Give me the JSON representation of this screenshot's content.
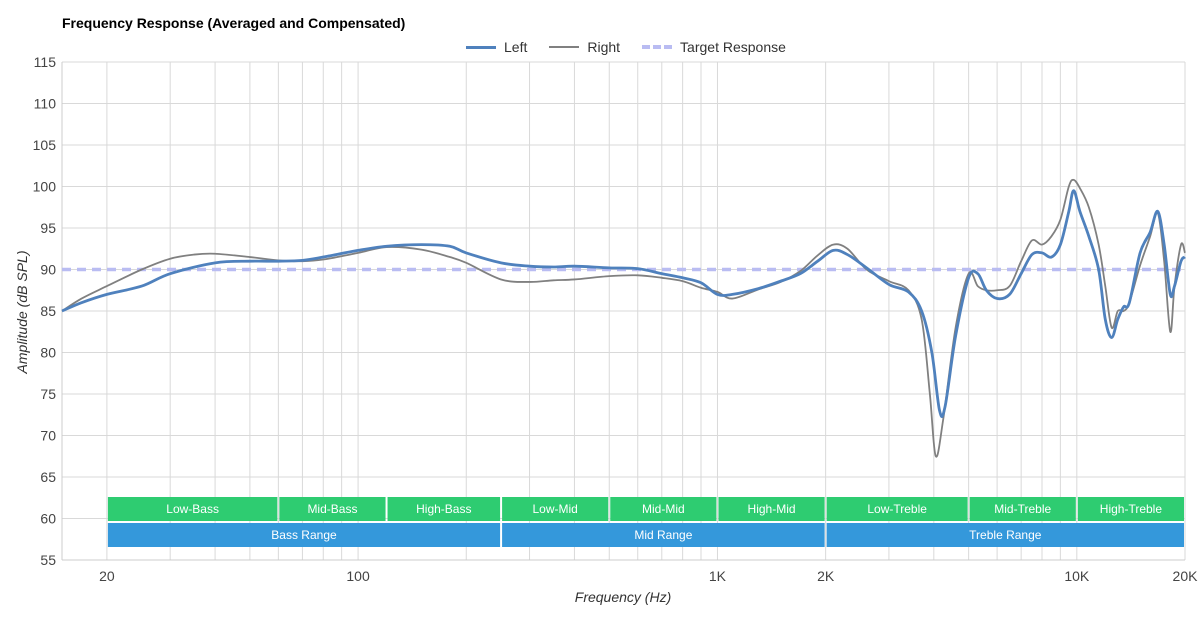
{
  "chart_data": {
    "type": "line",
    "title": "Frequency Response (Averaged and Compensated)",
    "xlabel": "Frequency (Hz)",
    "ylabel": "Amplitude (dB SPL)",
    "xscale": "log",
    "xlim": [
      15,
      20000
    ],
    "ylim": [
      55,
      115
    ],
    "yticks": [
      55,
      60,
      65,
      70,
      75,
      80,
      85,
      90,
      95,
      100,
      105,
      110,
      115
    ],
    "xtick_labels": [
      {
        "value": 20,
        "label": "20"
      },
      {
        "value": 100,
        "label": "100"
      },
      {
        "value": 1000,
        "label": "1K"
      },
      {
        "value": 2000,
        "label": "2K"
      },
      {
        "value": 10000,
        "label": "10K"
      },
      {
        "value": 20000,
        "label": "20K"
      }
    ],
    "grid": true,
    "legend_position": "top-center",
    "series": [
      {
        "name": "Left",
        "color": "#4f81bd",
        "points": [
          [
            15,
            85
          ],
          [
            17,
            86
          ],
          [
            20,
            87
          ],
          [
            25,
            88
          ],
          [
            30,
            89.5
          ],
          [
            40,
            90.8
          ],
          [
            50,
            91
          ],
          [
            60,
            91
          ],
          [
            70,
            91.1
          ],
          [
            80,
            91.5
          ],
          [
            100,
            92.3
          ],
          [
            120,
            92.8
          ],
          [
            150,
            93
          ],
          [
            180,
            92.8
          ],
          [
            200,
            92
          ],
          [
            250,
            90.8
          ],
          [
            300,
            90.4
          ],
          [
            350,
            90.3
          ],
          [
            400,
            90.4
          ],
          [
            500,
            90.2
          ],
          [
            600,
            90.1
          ],
          [
            700,
            89.5
          ],
          [
            800,
            89
          ],
          [
            900,
            88.4
          ],
          [
            1000,
            87
          ],
          [
            1100,
            87
          ],
          [
            1300,
            87.7
          ],
          [
            1500,
            88.6
          ],
          [
            1700,
            89.5
          ],
          [
            1900,
            91
          ],
          [
            2100,
            92.3
          ],
          [
            2300,
            91.8
          ],
          [
            2600,
            90.2
          ],
          [
            3000,
            88.2
          ],
          [
            3400,
            87.3
          ],
          [
            3700,
            85
          ],
          [
            3950,
            80
          ],
          [
            4150,
            73
          ],
          [
            4300,
            73.5
          ],
          [
            4600,
            82
          ],
          [
            5000,
            89
          ],
          [
            5300,
            89.5
          ],
          [
            5600,
            87.5
          ],
          [
            6000,
            86.5
          ],
          [
            6500,
            87
          ],
          [
            7000,
            89.5
          ],
          [
            7500,
            91.8
          ],
          [
            8000,
            92
          ],
          [
            8500,
            91.5
          ],
          [
            9000,
            93
          ],
          [
            9500,
            97
          ],
          [
            9800,
            99.5
          ],
          [
            10200,
            97
          ],
          [
            10800,
            94
          ],
          [
            11500,
            90
          ],
          [
            12000,
            84
          ],
          [
            12500,
            81.8
          ],
          [
            13000,
            84
          ],
          [
            13500,
            85.5
          ],
          [
            14000,
            86
          ],
          [
            15000,
            92
          ],
          [
            16000,
            94.5
          ],
          [
            16800,
            97
          ],
          [
            17500,
            93
          ],
          [
            18200,
            87
          ],
          [
            18700,
            88
          ],
          [
            19500,
            91
          ],
          [
            20000,
            91.5
          ]
        ]
      },
      {
        "name": "Right",
        "color": "#808080",
        "points": [
          [
            15,
            85
          ],
          [
            17,
            86.5
          ],
          [
            20,
            88
          ],
          [
            25,
            90
          ],
          [
            30,
            91.3
          ],
          [
            35,
            91.8
          ],
          [
            40,
            91.9
          ],
          [
            50,
            91.5
          ],
          [
            60,
            91.1
          ],
          [
            70,
            91
          ],
          [
            80,
            91.2
          ],
          [
            100,
            92
          ],
          [
            120,
            92.7
          ],
          [
            150,
            92.4
          ],
          [
            180,
            91.5
          ],
          [
            200,
            90.8
          ],
          [
            250,
            88.8
          ],
          [
            300,
            88.5
          ],
          [
            350,
            88.7
          ],
          [
            400,
            88.8
          ],
          [
            500,
            89.2
          ],
          [
            600,
            89.3
          ],
          [
            700,
            89
          ],
          [
            800,
            88.6
          ],
          [
            900,
            87.8
          ],
          [
            1000,
            87.3
          ],
          [
            1100,
            86.5
          ],
          [
            1300,
            87.6
          ],
          [
            1500,
            88.5
          ],
          [
            1700,
            89.8
          ],
          [
            1900,
            91.7
          ],
          [
            2100,
            93
          ],
          [
            2300,
            92.5
          ],
          [
            2600,
            90
          ],
          [
            3000,
            88.6
          ],
          [
            3400,
            87.5
          ],
          [
            3700,
            84
          ],
          [
            3900,
            75
          ],
          [
            4050,
            67.5
          ],
          [
            4250,
            72
          ],
          [
            4600,
            83
          ],
          [
            5000,
            89.5
          ],
          [
            5300,
            88
          ],
          [
            5600,
            87.5
          ],
          [
            6000,
            87.5
          ],
          [
            6500,
            88
          ],
          [
            7000,
            91
          ],
          [
            7500,
            93.5
          ],
          [
            8000,
            93
          ],
          [
            8500,
            94
          ],
          [
            9000,
            96
          ],
          [
            9500,
            100
          ],
          [
            9800,
            100.8
          ],
          [
            10200,
            99.8
          ],
          [
            10800,
            97.5
          ],
          [
            11500,
            93
          ],
          [
            12000,
            88
          ],
          [
            12500,
            83
          ],
          [
            13000,
            85
          ],
          [
            13500,
            85
          ],
          [
            14000,
            86
          ],
          [
            15000,
            90.5
          ],
          [
            16000,
            94
          ],
          [
            16800,
            96.8
          ],
          [
            17500,
            91
          ],
          [
            18200,
            82.5
          ],
          [
            18700,
            88
          ],
          [
            19500,
            93
          ],
          [
            20000,
            92
          ]
        ]
      },
      {
        "name": "Target Response",
        "color": "#b9bcf2",
        "dashed": true,
        "points": [
          [
            15,
            90
          ],
          [
            20000,
            90
          ]
        ]
      }
    ],
    "bands": [
      {
        "row": "top",
        "label": "Low-Bass",
        "from": 20,
        "to": 60
      },
      {
        "row": "top",
        "label": "Mid-Bass",
        "from": 60,
        "to": 120
      },
      {
        "row": "top",
        "label": "High-Bass",
        "from": 120,
        "to": 250
      },
      {
        "row": "top",
        "label": "Low-Mid",
        "from": 250,
        "to": 500
      },
      {
        "row": "top",
        "label": "Mid-Mid",
        "from": 500,
        "to": 1000
      },
      {
        "row": "top",
        "label": "High-Mid",
        "from": 1000,
        "to": 2000
      },
      {
        "row": "top",
        "label": "Low-Treble",
        "from": 2000,
        "to": 5000
      },
      {
        "row": "top",
        "label": "Mid-Treble",
        "from": 5000,
        "to": 10000
      },
      {
        "row": "top",
        "label": "High-Treble",
        "from": 10000,
        "to": 20000
      },
      {
        "row": "bottom",
        "label": "Bass Range",
        "from": 20,
        "to": 250
      },
      {
        "row": "bottom",
        "label": "Mid Range",
        "from": 250,
        "to": 2000
      },
      {
        "row": "bottom",
        "label": "Treble Range",
        "from": 2000,
        "to": 20000
      }
    ],
    "band_colors": {
      "top": "#2ecc71",
      "bottom": "#3498db"
    }
  }
}
